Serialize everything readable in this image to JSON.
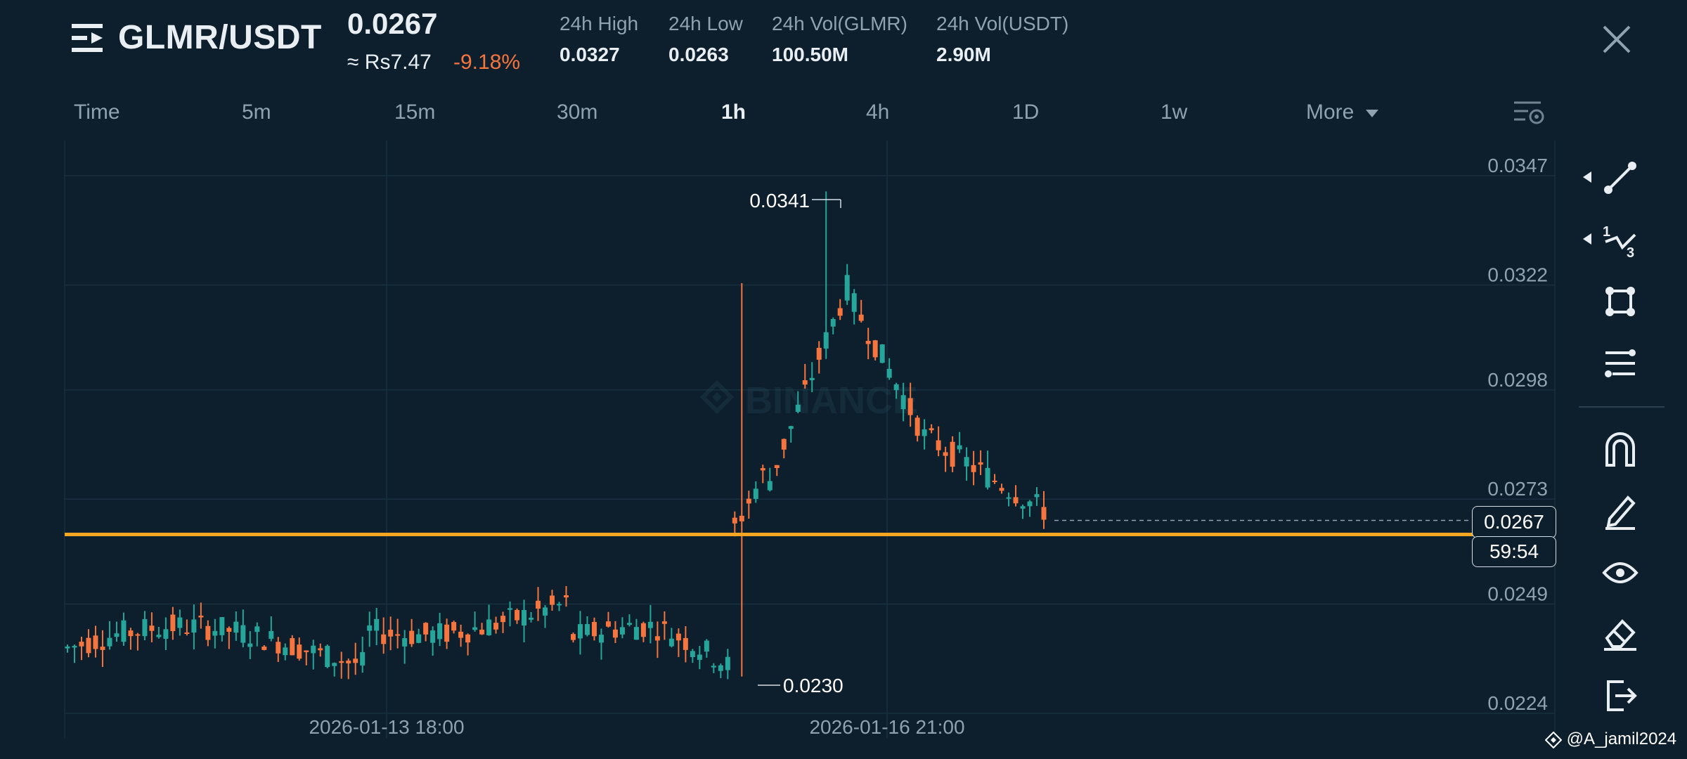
{
  "header": {
    "pair": "GLMR/USDT",
    "price": "0.0267",
    "fiat_price": "≈ Rs7.47",
    "change_pct": "-9.18%",
    "stats": [
      {
        "label": "24h High",
        "value": "0.0327"
      },
      {
        "label": "24h Low",
        "value": "0.0263"
      },
      {
        "label": "24h Vol(GLMR)",
        "value": "100.50M"
      },
      {
        "label": "24h Vol(USDT)",
        "value": "2.90M"
      }
    ]
  },
  "tabs": [
    {
      "label": "Time",
      "active": false
    },
    {
      "label": "5m",
      "active": false
    },
    {
      "label": "15m",
      "active": false
    },
    {
      "label": "30m",
      "active": false
    },
    {
      "label": "1h",
      "active": true
    },
    {
      "label": "4h",
      "active": false
    },
    {
      "label": "1D",
      "active": false
    },
    {
      "label": "1w",
      "active": false
    }
  ],
  "more_label": "More",
  "chart_data": {
    "type": "candlestick",
    "y_ticks": [
      "0.0347",
      "0.0322",
      "0.0298",
      "0.0273",
      "0.0249",
      "0.0224"
    ],
    "x_ticks": [
      "2026-01-13 18:00",
      "2026-01-16 21:00"
    ],
    "ylim": [
      0.0224,
      0.0347
    ],
    "annotations": {
      "max_label": "0.0341",
      "min_label": "0.0230"
    },
    "horizontal_line": {
      "value": 0.0263,
      "color": "#f5a623"
    },
    "last_price": "0.0267",
    "countdown": "59:54",
    "up_color": "#26a69a",
    "down_color": "#f6743d"
  },
  "tools": [
    "line-tool-icon",
    "fib-tool-icon",
    "shape-tool-icon",
    "indicator-tool-icon",
    "magnet-icon",
    "pen-icon",
    "eye-icon",
    "eraser-icon",
    "exit-icon"
  ],
  "watermark": "@A_jamil2024"
}
